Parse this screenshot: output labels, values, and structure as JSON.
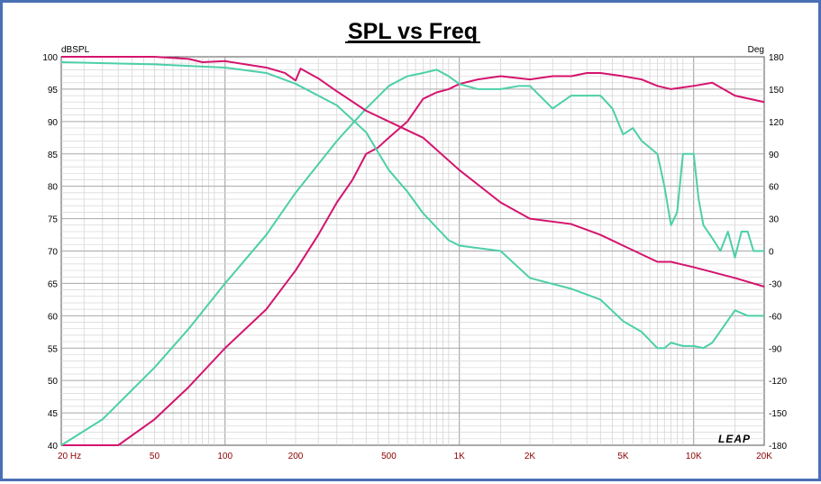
{
  "chart_data": {
    "type": "line",
    "title": "SPL vs Freq",
    "left_axis_unit": "dBSPL",
    "right_axis_unit": "Deg",
    "watermark": "LEAP",
    "x_scale": "log",
    "xlim": [
      20,
      20000
    ],
    "ylim_left": [
      40,
      100
    ],
    "ylim_right": [
      -180,
      180
    ],
    "grid": true,
    "x_tick_labels": [
      {
        "f": 20,
        "label": "20  Hz"
      },
      {
        "f": 50,
        "label": "50"
      },
      {
        "f": 100,
        "label": "100"
      },
      {
        "f": 200,
        "label": "200"
      },
      {
        "f": 500,
        "label": "500"
      },
      {
        "f": 1000,
        "label": "1K"
      },
      {
        "f": 2000,
        "label": "2K"
      },
      {
        "f": 5000,
        "label": "5K"
      },
      {
        "f": 10000,
        "label": "10K"
      },
      {
        "f": 20000,
        "label": "20K"
      }
    ],
    "left_ticks": [
      "100",
      "95",
      "90",
      "85",
      "80",
      "75",
      "70",
      "65",
      "60",
      "55",
      "50",
      "45",
      "40"
    ],
    "right_ticks": [
      "180",
      "150",
      "120",
      "90",
      "60",
      "30",
      "0",
      "-30",
      "-60",
      "-90",
      "-120",
      "-150",
      "-180"
    ],
    "colors": {
      "magenta": "#d4146e",
      "teal": "#4ccfa8",
      "axis_text": "#8b0000",
      "grid": "#c8c8c8"
    },
    "series": [
      {
        "color": "magenta",
        "axis": "left",
        "points": [
          [
            20,
            40
          ],
          [
            35,
            40
          ],
          [
            50,
            44
          ],
          [
            70,
            49
          ],
          [
            100,
            55
          ],
          [
            150,
            61
          ],
          [
            200,
            67
          ],
          [
            250,
            72.5
          ],
          [
            300,
            77.5
          ],
          [
            350,
            81
          ],
          [
            400,
            85
          ],
          [
            450,
            86
          ],
          [
            500,
            87.5
          ],
          [
            600,
            90
          ],
          [
            700,
            93.5
          ],
          [
            800,
            94.5
          ],
          [
            900,
            95
          ],
          [
            1000,
            95.8
          ],
          [
            1200,
            96.5
          ],
          [
            1500,
            97
          ],
          [
            2000,
            96.5
          ],
          [
            2500,
            97
          ],
          [
            3000,
            97
          ],
          [
            3500,
            97.5
          ],
          [
            4000,
            97.5
          ],
          [
            5000,
            97
          ],
          [
            6000,
            96.5
          ],
          [
            7000,
            95.5
          ],
          [
            8000,
            95
          ],
          [
            10000,
            95.5
          ],
          [
            12000,
            96
          ],
          [
            15000,
            94
          ],
          [
            20000,
            93
          ]
        ]
      },
      {
        "color": "teal",
        "axis": "left",
        "points": [
          [
            20,
            40
          ],
          [
            30,
            44
          ],
          [
            50,
            52
          ],
          [
            70,
            58
          ],
          [
            100,
            65
          ],
          [
            150,
            72.5
          ],
          [
            200,
            79
          ],
          [
            300,
            87
          ],
          [
            400,
            92
          ],
          [
            500,
            95.5
          ],
          [
            600,
            97
          ],
          [
            700,
            97.5
          ],
          [
            800,
            98
          ],
          [
            900,
            97
          ],
          [
            1000,
            95.8
          ],
          [
            1200,
            95
          ],
          [
            1500,
            95
          ],
          [
            1800,
            95.5
          ],
          [
            2000,
            95.5
          ],
          [
            2500,
            92
          ],
          [
            3000,
            94
          ],
          [
            4000,
            94
          ],
          [
            4500,
            92
          ],
          [
            5000,
            88
          ],
          [
            5500,
            89
          ],
          [
            6000,
            87
          ],
          [
            7000,
            85
          ],
          [
            7500,
            80
          ],
          [
            8000,
            74
          ],
          [
            8500,
            76
          ],
          [
            9000,
            85
          ],
          [
            10000,
            85
          ],
          [
            10500,
            78
          ],
          [
            11000,
            74
          ],
          [
            12000,
            72
          ],
          [
            13000,
            70
          ],
          [
            14000,
            73
          ],
          [
            15000,
            69
          ],
          [
            16000,
            73
          ],
          [
            17000,
            73
          ],
          [
            18000,
            70
          ],
          [
            20000,
            70
          ]
        ]
      },
      {
        "color": "magenta",
        "axis": "right",
        "points": [
          [
            20,
            180
          ],
          [
            50,
            180
          ],
          [
            70,
            178
          ],
          [
            80,
            175
          ],
          [
            100,
            176
          ],
          [
            150,
            170
          ],
          [
            180,
            165
          ],
          [
            200,
            158
          ],
          [
            210,
            169
          ],
          [
            250,
            160
          ],
          [
            300,
            148
          ],
          [
            400,
            130
          ],
          [
            500,
            120
          ],
          [
            700,
            105
          ],
          [
            1000,
            75
          ],
          [
            1500,
            45
          ],
          [
            2000,
            30
          ],
          [
            3000,
            25
          ],
          [
            4000,
            15
          ],
          [
            5000,
            5
          ],
          [
            7000,
            -10
          ],
          [
            8000,
            -10
          ],
          [
            10000,
            -15
          ],
          [
            15000,
            -25
          ],
          [
            20000,
            -33
          ]
        ]
      },
      {
        "color": "teal",
        "axis": "right",
        "points": [
          [
            20,
            175
          ],
          [
            50,
            173
          ],
          [
            100,
            170
          ],
          [
            150,
            165
          ],
          [
            200,
            155
          ],
          [
            300,
            135
          ],
          [
            400,
            110
          ],
          [
            500,
            75
          ],
          [
            600,
            55
          ],
          [
            700,
            35
          ],
          [
            900,
            10
          ],
          [
            1000,
            5
          ],
          [
            1500,
            0
          ],
          [
            2000,
            -25
          ],
          [
            3000,
            -35
          ],
          [
            4000,
            -45
          ],
          [
            5000,
            -65
          ],
          [
            6000,
            -75
          ],
          [
            7000,
            -90
          ],
          [
            7500,
            -90
          ],
          [
            8000,
            -85
          ],
          [
            9000,
            -88
          ],
          [
            10000,
            -88
          ],
          [
            11000,
            -90
          ],
          [
            12000,
            -85
          ],
          [
            15000,
            -55
          ],
          [
            17000,
            -60
          ],
          [
            20000,
            -60
          ]
        ]
      }
    ]
  }
}
